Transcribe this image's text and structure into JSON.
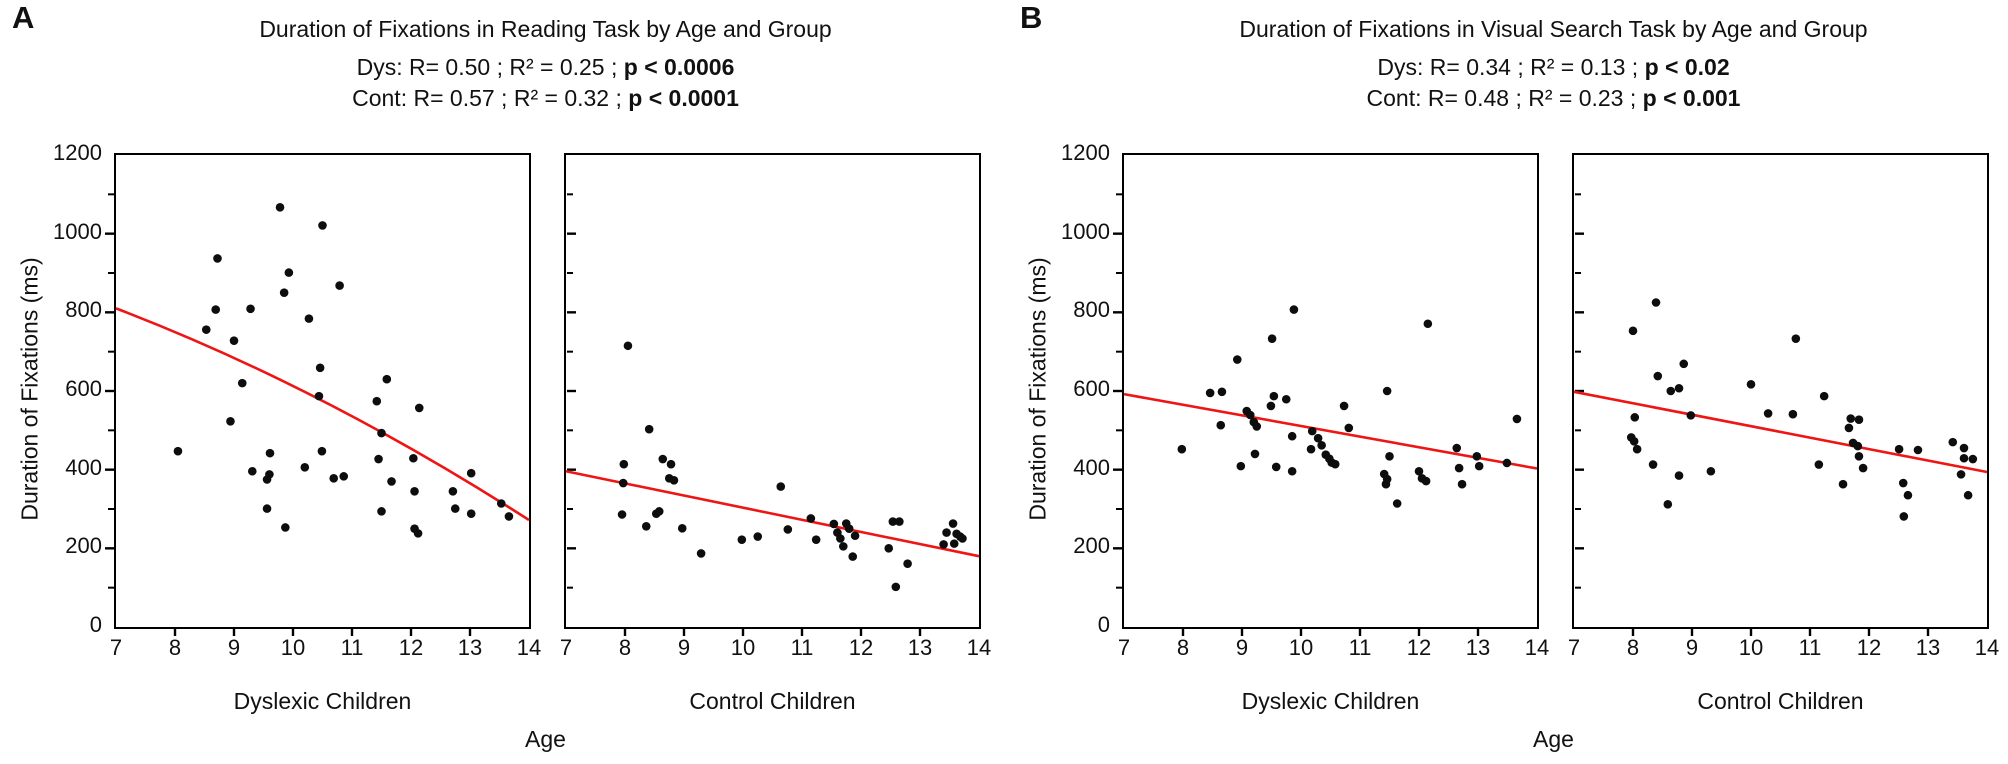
{
  "colors": {
    "trend": "#ee1515",
    "marker": "#0d0d0d",
    "axis": "#000000"
  },
  "figure": {
    "panels": [
      {
        "label": "A",
        "title": "Duration of Fixations in Reading Task by Age and Group",
        "stats": [
          {
            "text": "Dys:  R= 0.50 ; R² = 0.25 ; ",
            "p": "p < 0.0006"
          },
          {
            "text": "Cont: R= 0.57 ; R² = 0.32 ; ",
            "p": "p < 0.0001"
          }
        ],
        "ylabel": "Duration of Fixations (ms)",
        "xlabel": "Age"
      },
      {
        "label": "B",
        "title": "Duration of Fixations in Visual Search Task by Age and Group",
        "stats": [
          {
            "text": "Dys:  R= 0.34 ; R² = 0.13 ; ",
            "p": "p < 0.02"
          },
          {
            "text": "Cont: R= 0.48 ; R² = 0.23 ; ",
            "p": "p < 0.001"
          }
        ],
        "ylabel": "Duration of Fixations (ms)",
        "xlabel": "Age"
      }
    ]
  },
  "chart_data": [
    {
      "type": "scatter",
      "panel": "A",
      "group": "Dyslexic Children",
      "title": "Duration of Fixations in Reading Task by Age and Group",
      "xlabel": "Age",
      "ylabel": "Duration of Fixations (ms)",
      "xlim": [
        7,
        14
      ],
      "ylim": [
        0,
        1200
      ],
      "xticks": [
        7,
        8,
        9,
        10,
        11,
        12,
        13,
        14
      ],
      "yticks": [
        0,
        200,
        400,
        600,
        800,
        1000,
        1200
      ],
      "yticks_minor": [
        100,
        300,
        500,
        700,
        900,
        1100
      ],
      "ytick_labels": true,
      "tick_side": "out",
      "stats": {
        "R": 0.5,
        "R2": 0.25,
        "p": "< 0.0006"
      },
      "trend": {
        "start": [
          7,
          810
        ],
        "control": [
          10.5,
          609
        ],
        "end": [
          14,
          272
        ]
      },
      "points": [
        [
          8.05,
          447
        ],
        [
          8.53,
          756
        ],
        [
          8.69,
          807
        ],
        [
          8.72,
          937
        ],
        [
          8.94,
          523
        ],
        [
          9.0,
          728
        ],
        [
          9.14,
          620
        ],
        [
          9.28,
          809
        ],
        [
          9.31,
          396
        ],
        [
          9.56,
          375
        ],
        [
          9.56,
          301
        ],
        [
          9.6,
          388
        ],
        [
          9.61,
          442
        ],
        [
          9.78,
          1067
        ],
        [
          9.85,
          850
        ],
        [
          9.87,
          253
        ],
        [
          9.93,
          901
        ],
        [
          10.2,
          406
        ],
        [
          10.27,
          784
        ],
        [
          10.44,
          587
        ],
        [
          10.46,
          659
        ],
        [
          10.49,
          447
        ],
        [
          10.5,
          1021
        ],
        [
          10.69,
          378
        ],
        [
          10.79,
          868
        ],
        [
          10.86,
          383
        ],
        [
          11.42,
          574
        ],
        [
          11.45,
          427
        ],
        [
          11.5,
          493
        ],
        [
          11.5,
          294
        ],
        [
          11.59,
          630
        ],
        [
          11.67,
          370
        ],
        [
          12.04,
          429
        ],
        [
          12.06,
          345
        ],
        [
          12.06,
          250
        ],
        [
          12.12,
          238
        ],
        [
          12.14,
          557
        ],
        [
          12.71,
          345
        ],
        [
          12.75,
          301
        ],
        [
          13.02,
          391
        ],
        [
          13.02,
          288
        ],
        [
          13.53,
          314
        ],
        [
          13.66,
          281
        ]
      ]
    },
    {
      "type": "scatter",
      "panel": "A",
      "group": "Control Children",
      "title": "Duration of Fixations in Reading Task by Age and Group",
      "xlabel": "Age",
      "ylabel": "Duration of Fixations (ms)",
      "xlim": [
        7,
        14
      ],
      "ylim": [
        0,
        1200
      ],
      "xticks": [
        7,
        8,
        9,
        10,
        11,
        12,
        13,
        14
      ],
      "yticks": [
        0,
        200,
        400,
        600,
        800,
        1000,
        1200
      ],
      "yticks_minor": [
        100,
        300,
        500,
        700,
        900,
        1100
      ],
      "ytick_labels": false,
      "tick_side": "in",
      "stats": {
        "R": 0.57,
        "R2": 0.32,
        "p": "< 0.0001"
      },
      "trend": {
        "start": [
          7,
          396
        ],
        "end": [
          14,
          180
        ]
      },
      "points": [
        [
          7.95,
          286
        ],
        [
          7.97,
          366
        ],
        [
          7.98,
          414
        ],
        [
          8.05,
          715
        ],
        [
          8.36,
          256
        ],
        [
          8.41,
          503
        ],
        [
          8.53,
          288
        ],
        [
          8.58,
          294
        ],
        [
          8.64,
          427
        ],
        [
          8.75,
          378
        ],
        [
          8.78,
          414
        ],
        [
          8.83,
          373
        ],
        [
          8.97,
          251
        ],
        [
          9.29,
          187
        ],
        [
          9.98,
          222
        ],
        [
          10.25,
          230
        ],
        [
          10.64,
          357
        ],
        [
          10.76,
          248
        ],
        [
          11.15,
          276
        ],
        [
          11.24,
          222
        ],
        [
          11.54,
          262
        ],
        [
          11.6,
          240
        ],
        [
          11.65,
          225
        ],
        [
          11.7,
          205
        ],
        [
          11.75,
          263
        ],
        [
          11.8,
          250
        ],
        [
          11.86,
          179
        ],
        [
          11.9,
          232
        ],
        [
          12.47,
          200
        ],
        [
          12.54,
          268
        ],
        [
          12.59,
          102
        ],
        [
          12.65,
          268
        ],
        [
          12.79,
          161
        ],
        [
          13.4,
          210
        ],
        [
          13.45,
          240
        ],
        [
          13.56,
          263
        ],
        [
          13.58,
          212
        ],
        [
          13.62,
          237
        ],
        [
          13.68,
          230
        ],
        [
          13.72,
          225
        ]
      ]
    },
    {
      "type": "scatter",
      "panel": "B",
      "group": "Dyslexic Children",
      "title": "Duration of Fixations in Visual Search Task by Age and Group",
      "xlabel": "Age",
      "ylabel": "Duration of Fixations (ms)",
      "xlim": [
        7,
        14
      ],
      "ylim": [
        0,
        1200
      ],
      "xticks": [
        7,
        8,
        9,
        10,
        11,
        12,
        13,
        14
      ],
      "yticks": [
        0,
        200,
        400,
        600,
        800,
        1000,
        1200
      ],
      "yticks_minor": [
        100,
        300,
        500,
        700,
        900,
        1100
      ],
      "ytick_labels": true,
      "tick_side": "out",
      "stats": {
        "R": 0.34,
        "R2": 0.13,
        "p": "< 0.02"
      },
      "trend": {
        "start": [
          7,
          592
        ],
        "end": [
          14,
          403
        ]
      },
      "points": [
        [
          7.98,
          452
        ],
        [
          8.46,
          595
        ],
        [
          8.64,
          513
        ],
        [
          8.66,
          598
        ],
        [
          8.92,
          680
        ],
        [
          8.98,
          409
        ],
        [
          9.08,
          549
        ],
        [
          9.14,
          539
        ],
        [
          9.2,
          521
        ],
        [
          9.22,
          440
        ],
        [
          9.25,
          510
        ],
        [
          9.49,
          562
        ],
        [
          9.51,
          733
        ],
        [
          9.54,
          587
        ],
        [
          9.58,
          407
        ],
        [
          9.75,
          579
        ],
        [
          9.85,
          485
        ],
        [
          9.85,
          396
        ],
        [
          9.88,
          807
        ],
        [
          10.17,
          452
        ],
        [
          10.19,
          498
        ],
        [
          10.29,
          480
        ],
        [
          10.35,
          462
        ],
        [
          10.42,
          438
        ],
        [
          10.48,
          428
        ],
        [
          10.52,
          418
        ],
        [
          10.58,
          414
        ],
        [
          10.73,
          562
        ],
        [
          10.81,
          506
        ],
        [
          11.41,
          389
        ],
        [
          11.44,
          363
        ],
        [
          11.46,
          600
        ],
        [
          11.46,
          376
        ],
        [
          11.5,
          434
        ],
        [
          11.63,
          314
        ],
        [
          12.0,
          396
        ],
        [
          12.05,
          378
        ],
        [
          12.12,
          371
        ],
        [
          12.15,
          771
        ],
        [
          12.64,
          455
        ],
        [
          12.68,
          404
        ],
        [
          12.73,
          363
        ],
        [
          12.98,
          434
        ],
        [
          13.02,
          409
        ],
        [
          13.49,
          417
        ],
        [
          13.66,
          529
        ]
      ]
    },
    {
      "type": "scatter",
      "panel": "B",
      "group": "Control Children",
      "title": "Duration of Fixations in Visual Search Task by Age and Group",
      "xlabel": "Age",
      "ylabel": "Duration of Fixations (ms)",
      "xlim": [
        7,
        14
      ],
      "ylim": [
        0,
        1200
      ],
      "xticks": [
        7,
        8,
        9,
        10,
        11,
        12,
        13,
        14
      ],
      "yticks": [
        0,
        200,
        400,
        600,
        800,
        1000,
        1200
      ],
      "yticks_minor": [
        100,
        300,
        500,
        700,
        900,
        1100
      ],
      "ytick_labels": false,
      "tick_side": "in",
      "stats": {
        "R": 0.48,
        "R2": 0.23,
        "p": "< 0.001"
      },
      "trend": {
        "start": [
          7,
          598
        ],
        "end": [
          14,
          394
        ]
      },
      "points": [
        [
          7.97,
          482
        ],
        [
          8.0,
          753
        ],
        [
          8.02,
          472
        ],
        [
          8.03,
          533
        ],
        [
          8.07,
          452
        ],
        [
          8.34,
          413
        ],
        [
          8.39,
          825
        ],
        [
          8.42,
          638
        ],
        [
          8.59,
          312
        ],
        [
          8.64,
          600
        ],
        [
          8.78,
          607
        ],
        [
          8.78,
          385
        ],
        [
          8.86,
          669
        ],
        [
          8.98,
          538
        ],
        [
          9.32,
          396
        ],
        [
          10.0,
          617
        ],
        [
          10.29,
          543
        ],
        [
          10.71,
          541
        ],
        [
          10.76,
          733
        ],
        [
          11.15,
          413
        ],
        [
          11.24,
          587
        ],
        [
          11.56,
          363
        ],
        [
          11.66,
          506
        ],
        [
          11.69,
          530
        ],
        [
          11.73,
          468
        ],
        [
          11.81,
          460
        ],
        [
          11.83,
          527
        ],
        [
          11.83,
          434
        ],
        [
          11.9,
          404
        ],
        [
          12.51,
          452
        ],
        [
          12.58,
          366
        ],
        [
          12.59,
          281
        ],
        [
          12.66,
          335
        ],
        [
          12.83,
          450
        ],
        [
          13.42,
          470
        ],
        [
          13.56,
          388
        ],
        [
          13.61,
          455
        ],
        [
          13.61,
          429
        ],
        [
          13.68,
          335
        ],
        [
          13.76,
          427
        ]
      ]
    }
  ]
}
